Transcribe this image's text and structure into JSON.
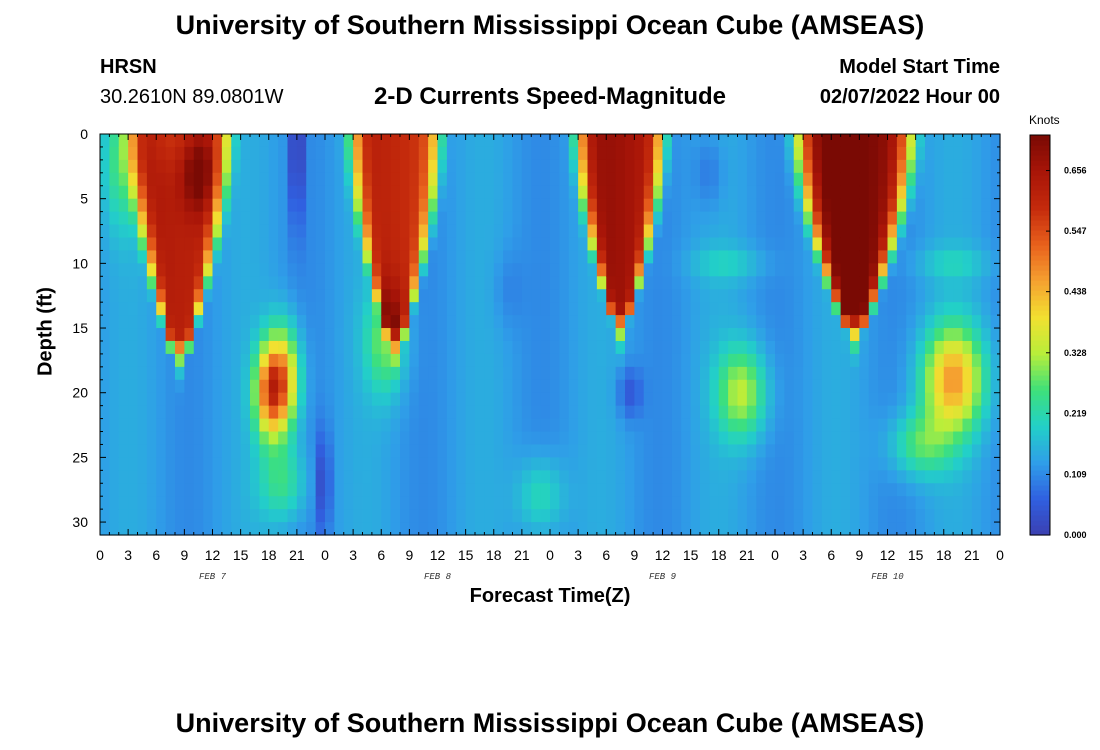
{
  "header": {
    "title": "University of Southern Mississippi Ocean Cube (AMSEAS)",
    "footer_title": "University of Southern Mississippi Ocean Cube (AMSEAS)",
    "station_code": "HRSN",
    "station_coords": "30.2610N  89.0801W",
    "chart_title": "2-D Currents Speed-Magnitude",
    "start_label": "Model Start Time",
    "start_value": "02/07/2022 Hour 00"
  },
  "chart_data": {
    "type": "heatmap",
    "title": "2-D Currents Speed-Magnitude",
    "xlabel": "Forecast Time(Z)",
    "ylabel": "Depth (ft)",
    "x_range_hours": [
      0,
      96
    ],
    "y_range_ft": [
      0,
      31
    ],
    "y_inverted": true,
    "x_tick_labels": [
      "0",
      "3",
      "6",
      "9",
      "12",
      "15",
      "18",
      "21",
      "0",
      "3",
      "6",
      "9",
      "12",
      "15",
      "18",
      "21",
      "0",
      "3",
      "6",
      "9",
      "12",
      "15",
      "18",
      "21",
      "0",
      "3",
      "6",
      "9",
      "12",
      "15",
      "18",
      "21",
      "0"
    ],
    "y_tick_labels": [
      "0",
      "5",
      "10",
      "15",
      "20",
      "25",
      "30"
    ],
    "date_labels": [
      {
        "text": "FEB 7",
        "hour": 12
      },
      {
        "text": "FEB 8",
        "hour": 36
      },
      {
        "text": "FEB 9",
        "hour": 60
      },
      {
        "text": "FEB 10",
        "hour": 84
      }
    ],
    "colorbar": {
      "unit": "Knots",
      "min": 0.0,
      "max": 0.72,
      "tick_labels": [
        "0.000",
        "0.109",
        "0.219",
        "0.328",
        "0.438",
        "0.547",
        "0.656"
      ],
      "tick_values": [
        0.0,
        0.109,
        0.219,
        0.328,
        0.438,
        0.547,
        0.656
      ],
      "colors": [
        "#3b3fb0",
        "#3060e0",
        "#2f9ee8",
        "#22d0c8",
        "#3ee07a",
        "#b8ee3a",
        "#f2e030",
        "#f5a030",
        "#e8601c",
        "#c42a0c",
        "#a81508",
        "#7a0a04"
      ]
    },
    "features": [
      {
        "t": 2.5,
        "z": 2,
        "st": 2.2,
        "sz": 5,
        "a": 0.13
      },
      {
        "t": 10.5,
        "z": 3,
        "st": 1.8,
        "sz": 3,
        "a": 0.13
      },
      {
        "t": 18,
        "z": 20,
        "st": 1.6,
        "sz": 3.5,
        "a": 0.3
      },
      {
        "t": 21,
        "z": 1,
        "st": 0.6,
        "sz": 6,
        "a": -0.16
      },
      {
        "t": 23.8,
        "z": 27,
        "st": 0.8,
        "sz": 4,
        "a": -0.1
      },
      {
        "t": 30.5,
        "z": 16,
        "st": 2.1,
        "sz": 4,
        "a": 0.16
      },
      {
        "t": 7.5,
        "z": 0,
        "st": 3.0,
        "sz": 3,
        "a": -0.05
      },
      {
        "t": 19.5,
        "z": 19,
        "st": 1.8,
        "sz": 4,
        "a": 0.32
      },
      {
        "t": 19.5,
        "z": 27,
        "st": 2.5,
        "sz": 3,
        "a": 0.12
      },
      {
        "t": 43.5,
        "z": 12,
        "st": 1.6,
        "sz": 3,
        "a": -0.03
      },
      {
        "t": 56.5,
        "z": 20,
        "st": 1.3,
        "sz": 2,
        "a": -0.08
      },
      {
        "t": 68.5,
        "z": 20,
        "st": 2.6,
        "sz": 3.5,
        "a": 0.2
      },
      {
        "t": 91,
        "z": 19,
        "st": 3.2,
        "sz": 4,
        "a": 0.32
      },
      {
        "t": 87.5,
        "z": 24,
        "st": 3.2,
        "sz": 2.5,
        "a": 0.14
      },
      {
        "t": 47,
        "z": 28,
        "st": 2.5,
        "sz": 3,
        "a": 0.1
      },
      {
        "t": 65,
        "z": 3,
        "st": 1.6,
        "sz": 3,
        "a": -0.05
      }
    ],
    "surface_jets": [
      {
        "t": 8.5,
        "hw": 4.8,
        "depth": 18,
        "peak": 0.64
      },
      {
        "t": 31.5,
        "hw": 4.3,
        "depth": 17,
        "peak": 0.6
      },
      {
        "t": 55.5,
        "hw": 4.2,
        "depth": 15.5,
        "peak": 0.66
      }
    ]
  }
}
